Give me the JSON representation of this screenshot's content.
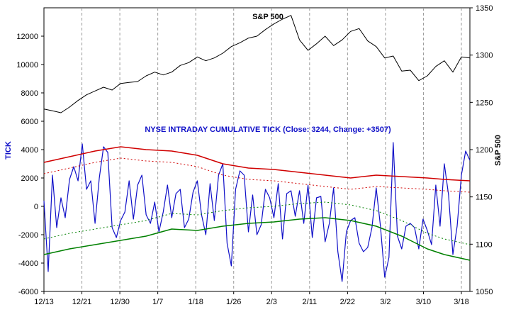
{
  "chart_data": {
    "type": "line",
    "title": "S&P 500",
    "subtitle": "NYSE INTRADAY CUMULATIVE TICK   (Close:  3244, Change:  +3507)",
    "left_axis_label": "TICK",
    "right_axis_label": "S&P 500",
    "x_tick_labels": [
      "12/13",
      "12/21",
      "12/30",
      "1/7",
      "1/18",
      "1/26",
      "2/3",
      "2/11",
      "2/22",
      "3/2",
      "3/10",
      "3/18"
    ],
    "left_ylim": [
      -6000,
      14000
    ],
    "right_ylim": [
      1050,
      1350
    ],
    "left_ticks": [
      -6000,
      -4000,
      -2000,
      0,
      2000,
      4000,
      6000,
      8000,
      10000,
      12000
    ],
    "right_ticks": [
      1050,
      1100,
      1150,
      1200,
      1250,
      1300,
      1350
    ],
    "grid": "vertical dashed",
    "colors": {
      "sp500": "#000000",
      "tick": "#1010c8",
      "upper_band": "#d00000",
      "lower_band": "#008000",
      "left_axis_label": "#1010c8",
      "right_axis_label": "#000000"
    },
    "series": [
      {
        "name": "S&P 500",
        "axis": "right",
        "x": [
          0,
          2,
          4,
          6,
          8,
          10,
          12,
          14,
          16,
          18,
          20,
          22,
          24,
          26,
          28,
          30,
          32,
          34,
          36,
          38,
          40,
          42,
          44,
          46,
          48,
          50,
          52,
          54,
          56,
          58,
          60,
          62,
          64,
          66,
          68,
          70,
          72,
          74,
          76,
          78,
          80,
          82,
          84,
          86,
          88,
          90,
          92,
          94,
          96,
          98,
          100
        ],
        "values": [
          1243,
          1241,
          1239,
          1245,
          1252,
          1258,
          1262,
          1266,
          1263,
          1270,
          1271,
          1272,
          1278,
          1282,
          1279,
          1282,
          1289,
          1292,
          1298,
          1294,
          1297,
          1302,
          1309,
          1313,
          1318,
          1320,
          1327,
          1333,
          1338,
          1342,
          1316,
          1305,
          1312,
          1320,
          1310,
          1316,
          1325,
          1328,
          1315,
          1309,
          1297,
          1299,
          1283,
          1284,
          1273,
          1278,
          1288,
          1294,
          1282,
          1298,
          1297
        ]
      },
      {
        "name": "Cumulative TICK",
        "axis": "left",
        "x": [
          0,
          1,
          2,
          3,
          4,
          5,
          6,
          7,
          8,
          9,
          10,
          11,
          12,
          13,
          14,
          15,
          16,
          17,
          18,
          19,
          20,
          21,
          22,
          23,
          24,
          25,
          26,
          27,
          28,
          29,
          30,
          31,
          32,
          33,
          34,
          35,
          36,
          37,
          38,
          39,
          40,
          41,
          42,
          43,
          44,
          45,
          46,
          47,
          48,
          49,
          50,
          51,
          52,
          53,
          54,
          55,
          56,
          57,
          58,
          59,
          60,
          61,
          62,
          63,
          64,
          65,
          66,
          67,
          68,
          69,
          70,
          71,
          72,
          73,
          74,
          75,
          76,
          77,
          78,
          79,
          80,
          81,
          82,
          83,
          84,
          85,
          86,
          87,
          88,
          89,
          90,
          91,
          92,
          93,
          94,
          95,
          96,
          97,
          98,
          99,
          100
        ],
        "values": [
          400,
          -4600,
          2200,
          -1500,
          600,
          -800,
          1900,
          2800,
          1800,
          4400,
          1200,
          1800,
          -1200,
          2000,
          4200,
          3800,
          -1500,
          -2200,
          -1000,
          -400,
          1800,
          -900,
          1500,
          2200,
          -600,
          -1200,
          300,
          -1800,
          -400,
          1500,
          -800,
          900,
          1200,
          -1500,
          -900,
          1000,
          1800,
          -600,
          -2000,
          1600,
          -1000,
          2200,
          3000,
          -2600,
          -4200,
          1200,
          2500,
          2200,
          -1800,
          800,
          -2000,
          -1300,
          1200,
          600,
          -800,
          1600,
          -2300,
          900,
          1100,
          -700,
          1100,
          -1200,
          1500,
          -2200,
          600,
          700,
          -2500,
          -1200,
          1300,
          -3200,
          -5300,
          -1800,
          -1000,
          -800,
          -2600,
          -3200,
          -2900,
          -1500,
          1300,
          -1400,
          -5000,
          -3600,
          4500,
          -2100,
          -3000,
          -1400,
          -1200,
          -1500,
          -3000,
          -900,
          -1700,
          -2700,
          1500,
          -1400,
          3000,
          800,
          -3400,
          -1400,
          2200,
          3900,
          3244
        ]
      },
      {
        "name": "Upper band",
        "axis": "left",
        "x": [
          0,
          6,
          12,
          18,
          24,
          30,
          36,
          42,
          48,
          54,
          60,
          66,
          72,
          78,
          84,
          90,
          94,
          100
        ],
        "values": [
          3100,
          3500,
          3900,
          4200,
          4000,
          3900,
          3600,
          3000,
          2700,
          2600,
          2400,
          2200,
          2000,
          2200,
          2100,
          2000,
          1900,
          1800
        ]
      },
      {
        "name": "Lower band",
        "axis": "left",
        "x": [
          0,
          6,
          12,
          18,
          24,
          30,
          36,
          42,
          48,
          54,
          60,
          66,
          72,
          78,
          84,
          90,
          94,
          100
        ],
        "values": [
          -3400,
          -3000,
          -2700,
          -2400,
          -2100,
          -1600,
          -1700,
          -1400,
          -1200,
          -1100,
          -900,
          -800,
          -1000,
          -1400,
          -2100,
          -3000,
          -3400,
          -3800
        ]
      }
    ]
  }
}
